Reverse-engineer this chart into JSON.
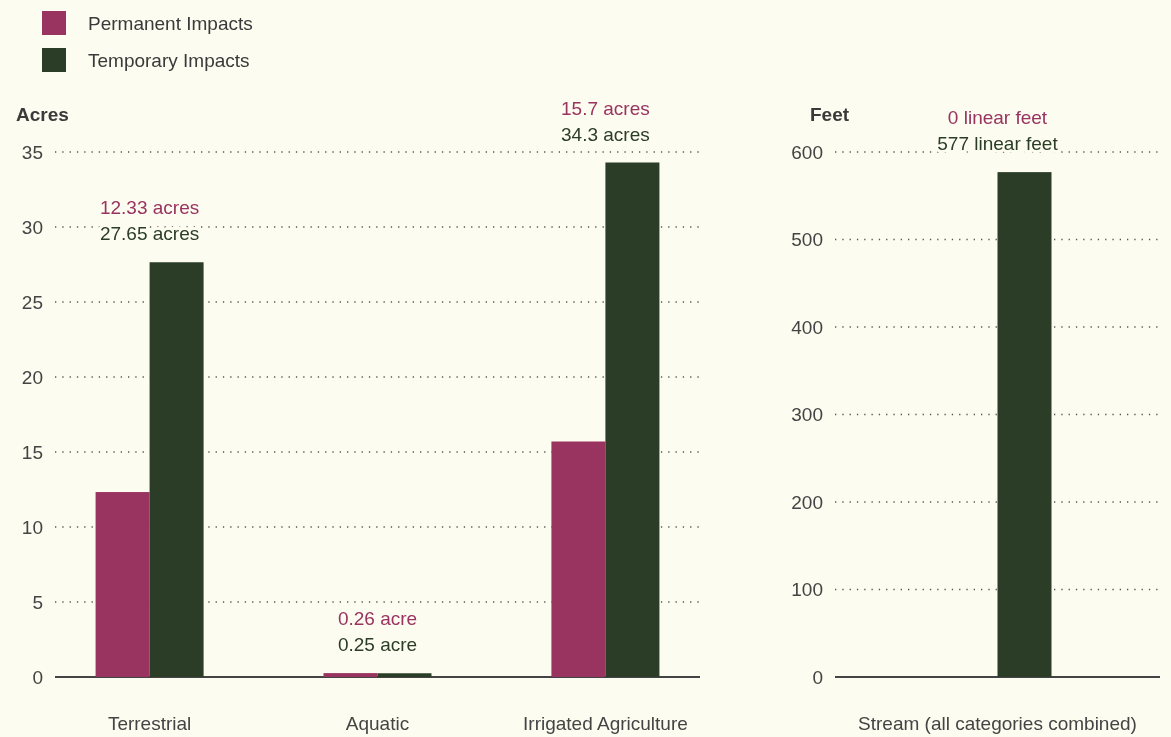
{
  "chart_data": [
    {
      "type": "bar",
      "ylabel": "Acres",
      "categories": [
        "Terrestrial",
        "Aquatic",
        "Irrigated Agriculture"
      ],
      "series": [
        {
          "name": "Permanent Impacts",
          "color": "#993460",
          "values": [
            12.33,
            0.26,
            15.7
          ]
        },
        {
          "name": "Temporary Impacts",
          "color": "#2b3d26",
          "values": [
            27.65,
            0.25,
            34.3
          ],
          "value_labels": [
            "27.65 acres",
            "0.25 acre",
            "34.3 acres"
          ]
        }
      ],
      "annotations": [
        "12.33 acres",
        "0.26 acre",
        "15.7 acres"
      ],
      "ylim": [
        0,
        35
      ],
      "yticks": [
        0,
        5,
        10,
        15,
        20,
        25,
        30,
        35
      ],
      "grid": "y",
      "legend": "top left"
    },
    {
      "type": "bar",
      "ylabel": "Feet",
      "categories": [
        "Stream (all categories combined)"
      ],
      "series": [
        {
          "color": "#993460",
          "values": [
            0
          ]
        },
        {
          "color": "#2b3d26",
          "values": [
            577
          ],
          "value_labels": [
            "577 linear feet"
          ]
        }
      ],
      "annotations": [
        "0 linear feet"
      ],
      "ylim": [
        0,
        600
      ],
      "yticks": [
        0,
        100,
        200,
        300,
        400,
        500,
        600
      ],
      "grid": "y",
      "legend": false
    }
  ]
}
